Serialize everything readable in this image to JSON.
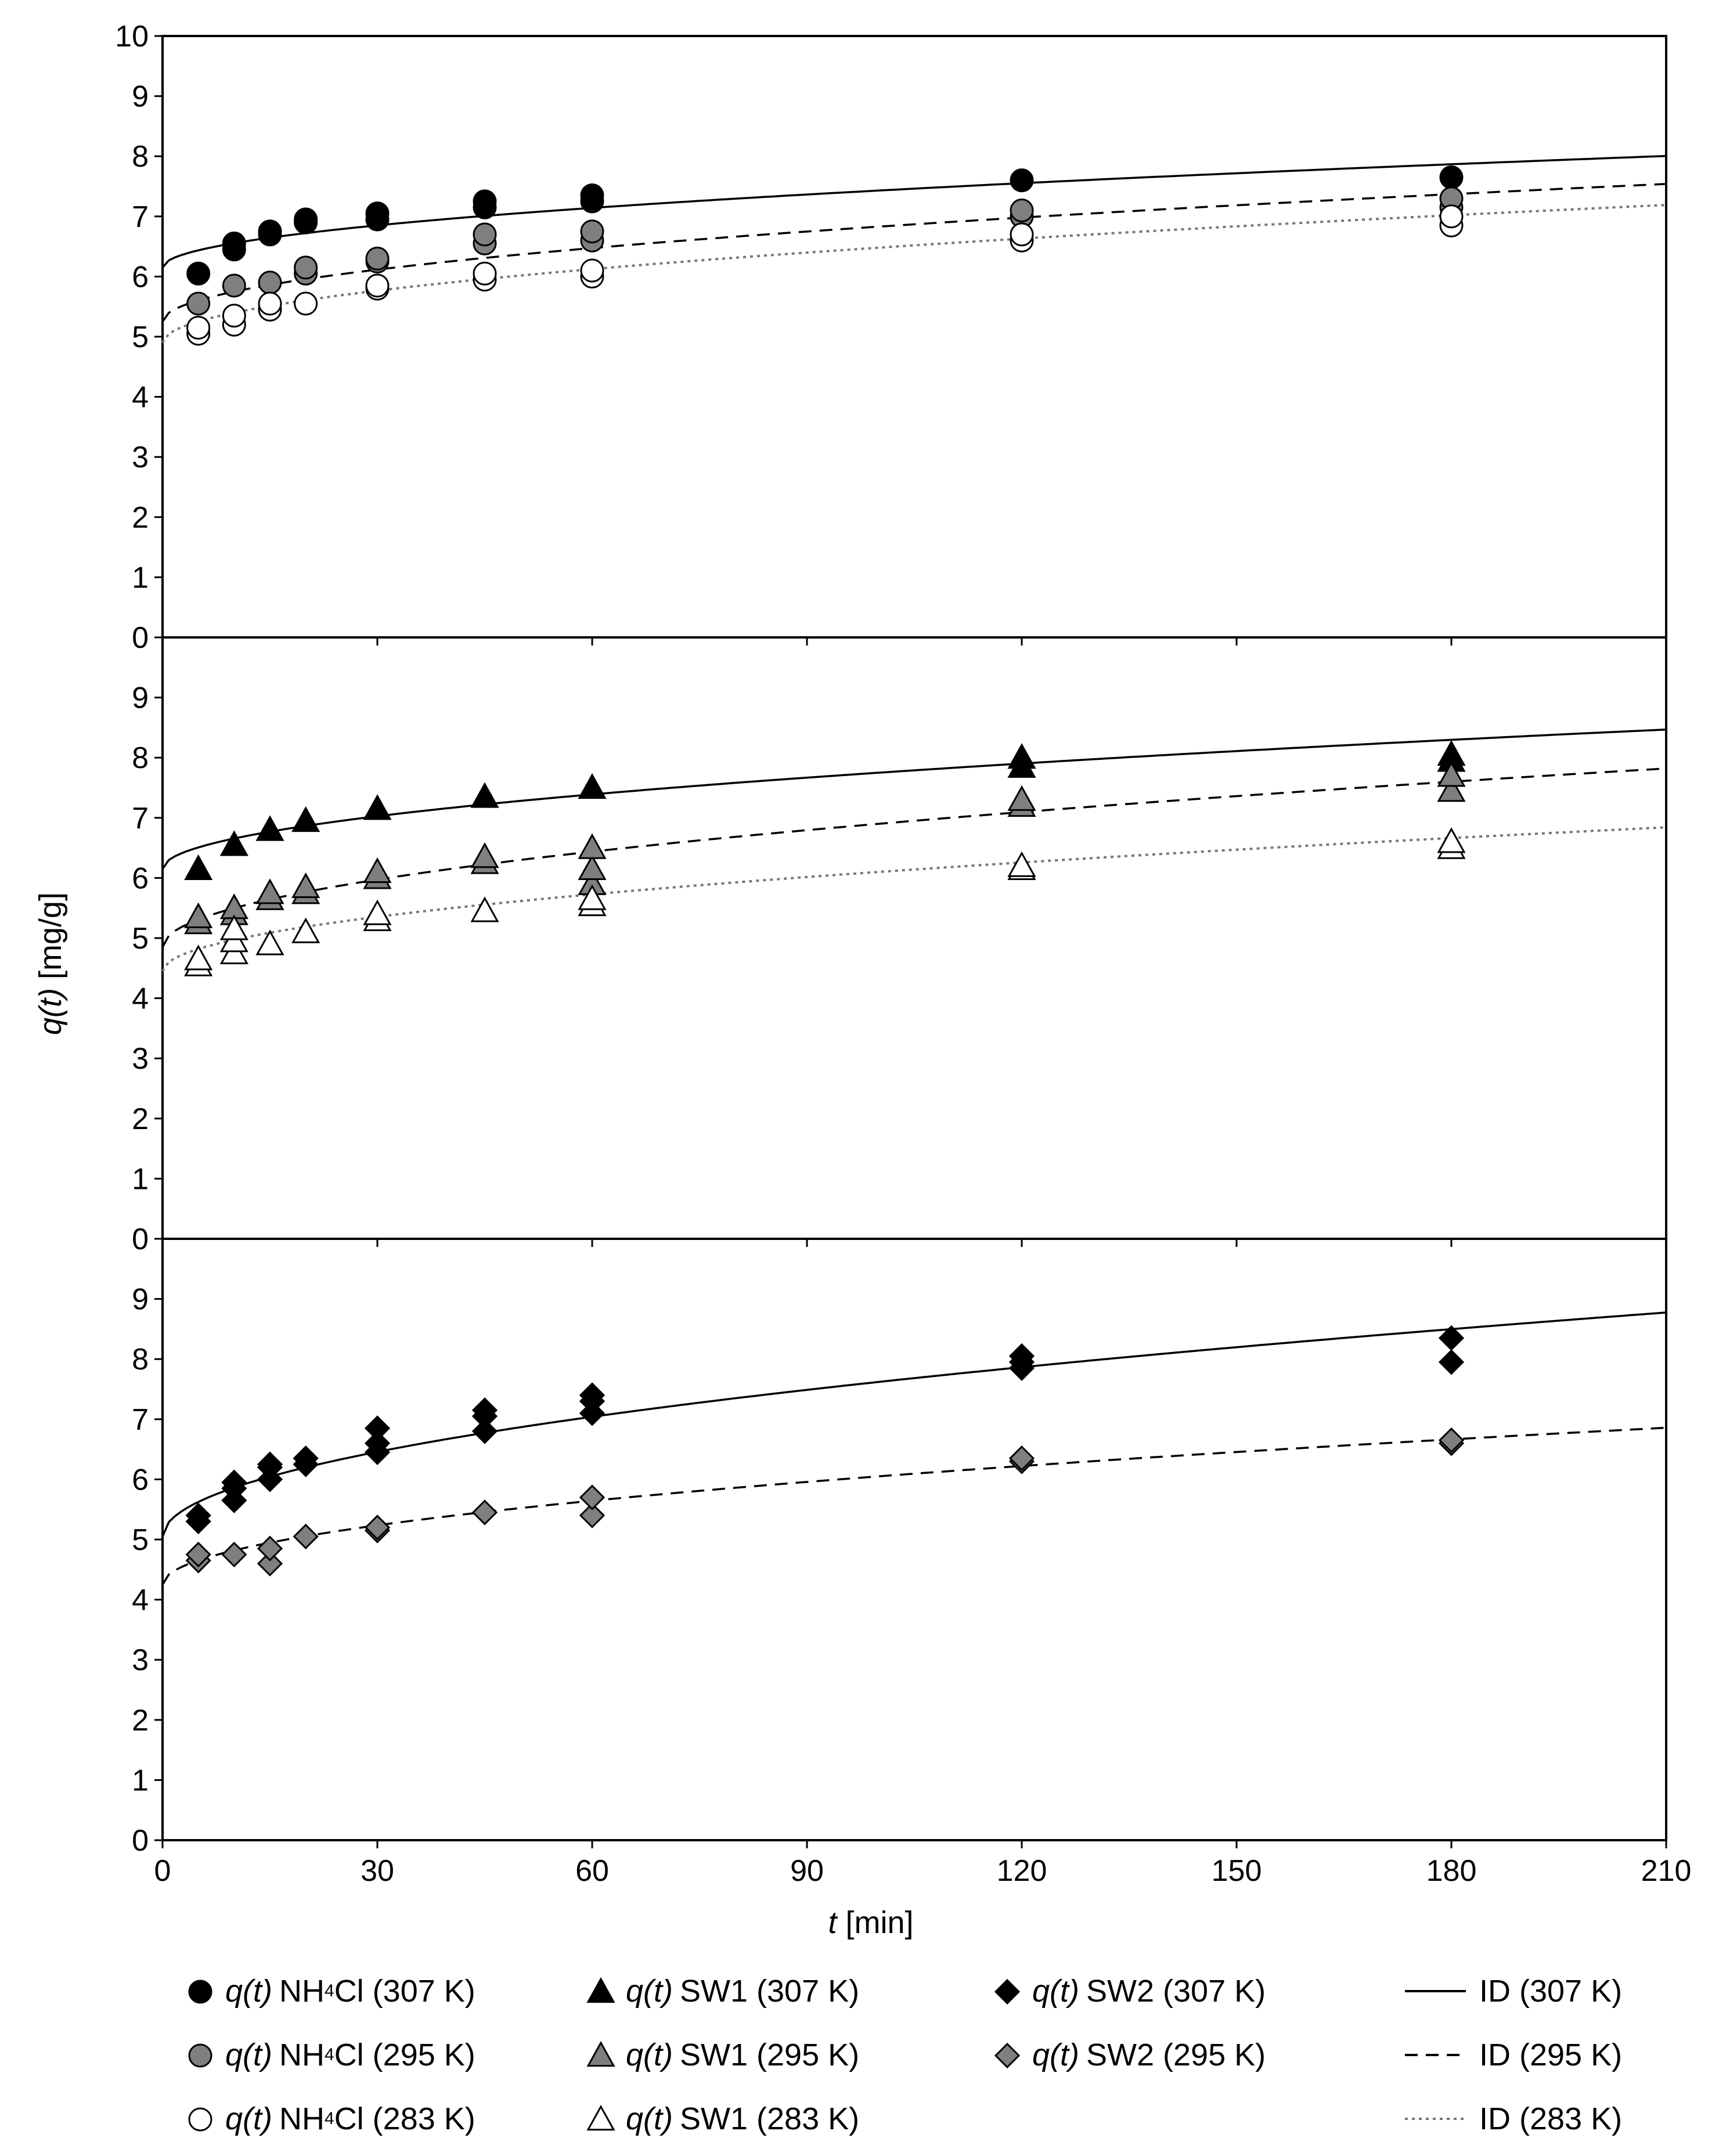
{
  "chart_data": {
    "type": "scatter",
    "x_axis": {
      "label_italic": "t",
      "label_unit": " [min]",
      "ticks": [
        0,
        30,
        60,
        90,
        120,
        150,
        180,
        210
      ],
      "xlim": [
        0,
        210
      ]
    },
    "y_axis": {
      "label_italic": "q(t)",
      "label_unit": " [mg/g]"
    },
    "panels": [
      {
        "name": "NH4Cl",
        "ylim": [
          0,
          10
        ],
        "yticks": [
          0,
          1,
          2,
          3,
          4,
          5,
          6,
          7,
          8,
          9,
          10
        ],
        "series": [
          {
            "name": "q(t) NH4Cl (307 K)",
            "marker": "circle",
            "fill": "#000000",
            "points": [
              [
                5,
                6.05
              ],
              [
                10,
                6.45
              ],
              [
                10,
                6.55
              ],
              [
                15,
                6.7
              ],
              [
                15,
                6.75
              ],
              [
                20,
                6.9
              ],
              [
                20,
                6.95
              ],
              [
                30,
                6.95
              ],
              [
                30,
                7.05
              ],
              [
                45,
                7.15
              ],
              [
                45,
                7.25
              ],
              [
                60,
                7.25
              ],
              [
                60,
                7.35
              ],
              [
                120,
                7.6
              ],
              [
                180,
                7.65
              ]
            ]
          },
          {
            "name": "q(t) NH4Cl (295 K)",
            "marker": "circle",
            "fill": "#7f7f7f",
            "points": [
              [
                5,
                5.55
              ],
              [
                10,
                5.85
              ],
              [
                15,
                5.9
              ],
              [
                20,
                6.05
              ],
              [
                20,
                6.15
              ],
              [
                30,
                6.25
              ],
              [
                30,
                6.3
              ],
              [
                45,
                6.55
              ],
              [
                45,
                6.7
              ],
              [
                60,
                6.6
              ],
              [
                60,
                6.75
              ],
              [
                120,
                7.0
              ],
              [
                120,
                7.1
              ],
              [
                180,
                7.15
              ],
              [
                180,
                7.3
              ]
            ]
          },
          {
            "name": "q(t) NH4Cl (283 K)",
            "marker": "circle",
            "fill": "#ffffff",
            "points": [
              [
                5,
                5.05
              ],
              [
                5,
                5.15
              ],
              [
                10,
                5.2
              ],
              [
                10,
                5.35
              ],
              [
                15,
                5.45
              ],
              [
                15,
                5.55
              ],
              [
                20,
                5.55
              ],
              [
                30,
                5.8
              ],
              [
                30,
                5.85
              ],
              [
                45,
                5.95
              ],
              [
                45,
                6.05
              ],
              [
                60,
                6.0
              ],
              [
                60,
                6.1
              ],
              [
                120,
                6.6
              ],
              [
                120,
                6.7
              ],
              [
                180,
                6.85
              ],
              [
                180,
                7.0
              ]
            ]
          }
        ],
        "fits": [
          {
            "name": "ID (307 K)",
            "style": "solid",
            "color": "#000000",
            "q0": 6.15,
            "k": 0.128
          },
          {
            "name": "ID (295 K)",
            "style": "dashed",
            "color": "#000000",
            "q0": 5.25,
            "k": 0.158
          },
          {
            "name": "ID (283 K)",
            "style": "dotted",
            "color": "#777777",
            "q0": 4.9,
            "k": 0.158
          }
        ]
      },
      {
        "name": "SW1",
        "ylim": [
          0,
          10
        ],
        "yticks": [
          0,
          1,
          2,
          3,
          4,
          5,
          6,
          7,
          8,
          9
        ],
        "series": [
          {
            "name": "q(t) SW1 (307 K)",
            "marker": "triangle",
            "fill": "#000000",
            "points": [
              [
                5,
                6.15
              ],
              [
                10,
                6.55
              ],
              [
                15,
                6.8
              ],
              [
                20,
                6.95
              ],
              [
                30,
                7.15
              ],
              [
                45,
                7.35
              ],
              [
                60,
                7.5
              ],
              [
                120,
                7.85
              ],
              [
                120,
                8.0
              ],
              [
                180,
                7.95
              ],
              [
                180,
                8.05
              ]
            ]
          },
          {
            "name": "q(t) SW1 (295 K)",
            "marker": "triangle",
            "fill": "#7f7f7f",
            "points": [
              [
                5,
                5.25
              ],
              [
                5,
                5.35
              ],
              [
                10,
                5.4
              ],
              [
                10,
                5.5
              ],
              [
                15,
                5.65
              ],
              [
                15,
                5.75
              ],
              [
                20,
                5.75
              ],
              [
                20,
                5.85
              ],
              [
                30,
                6.0
              ],
              [
                30,
                6.1
              ],
              [
                45,
                6.25
              ],
              [
                45,
                6.35
              ],
              [
                60,
                5.9
              ],
              [
                60,
                6.15
              ],
              [
                60,
                6.5
              ],
              [
                120,
                7.2
              ],
              [
                120,
                7.3
              ],
              [
                180,
                7.45
              ],
              [
                180,
                7.7
              ]
            ]
          },
          {
            "name": "q(t) SW1 (283 K)",
            "marker": "triangle",
            "fill": "#ffffff",
            "points": [
              [
                5,
                4.55
              ],
              [
                5,
                4.65
              ],
              [
                10,
                4.75
              ],
              [
                10,
                4.95
              ],
              [
                10,
                5.15
              ],
              [
                15,
                4.9
              ],
              [
                20,
                5.1
              ],
              [
                30,
                5.3
              ],
              [
                30,
                5.4
              ],
              [
                45,
                5.45
              ],
              [
                60,
                5.55
              ],
              [
                60,
                5.65
              ],
              [
                120,
                6.15
              ],
              [
                120,
                6.2
              ],
              [
                180,
                6.5
              ],
              [
                180,
                6.6
              ]
            ]
          }
        ],
        "fits": [
          {
            "name": "ID (307 K)",
            "style": "solid",
            "color": "#000000",
            "q0": 6.15,
            "k": 0.16
          },
          {
            "name": "ID (295 K)",
            "style": "dashed",
            "color": "#000000",
            "q0": 4.85,
            "k": 0.205
          },
          {
            "name": "ID (283 K)",
            "style": "dotted",
            "color": "#777777",
            "q0": 4.45,
            "k": 0.165
          }
        ]
      },
      {
        "name": "SW2",
        "ylim": [
          0,
          10
        ],
        "yticks": [
          0,
          1,
          2,
          3,
          4,
          5,
          6,
          7,
          8,
          9
        ],
        "series": [
          {
            "name": "q(t) SW2 (307 K)",
            "marker": "diamond",
            "fill": "#000000",
            "points": [
              [
                5,
                5.3
              ],
              [
                5,
                5.4
              ],
              [
                10,
                5.65
              ],
              [
                10,
                5.85
              ],
              [
                10,
                5.95
              ],
              [
                15,
                6.0
              ],
              [
                15,
                6.2
              ],
              [
                15,
                6.25
              ],
              [
                20,
                6.25
              ],
              [
                20,
                6.35
              ],
              [
                30,
                6.45
              ],
              [
                30,
                6.6
              ],
              [
                30,
                6.85
              ],
              [
                45,
                6.8
              ],
              [
                45,
                7.05
              ],
              [
                45,
                7.15
              ],
              [
                60,
                7.1
              ],
              [
                60,
                7.3
              ],
              [
                60,
                7.4
              ],
              [
                120,
                7.85
              ],
              [
                120,
                7.95
              ],
              [
                120,
                8.05
              ],
              [
                180,
                7.95
              ],
              [
                180,
                8.35
              ]
            ]
          },
          {
            "name": "q(t) SW2 (295 K)",
            "marker": "diamond",
            "fill": "#7f7f7f",
            "points": [
              [
                5,
                4.65
              ],
              [
                5,
                4.75
              ],
              [
                10,
                4.75
              ],
              [
                15,
                4.6
              ],
              [
                15,
                4.85
              ],
              [
                20,
                5.05
              ],
              [
                30,
                5.15
              ],
              [
                30,
                5.2
              ],
              [
                45,
                5.45
              ],
              [
                60,
                5.4
              ],
              [
                60,
                5.7
              ],
              [
                120,
                6.3
              ],
              [
                120,
                6.35
              ],
              [
                180,
                6.6
              ],
              [
                180,
                6.65
              ]
            ]
          }
        ],
        "fits": [
          {
            "name": "ID (307 K)",
            "style": "solid",
            "color": "#000000",
            "q0": 5.05,
            "k": 0.257
          },
          {
            "name": "ID (295 K)",
            "style": "dashed",
            "color": "#000000",
            "q0": 4.25,
            "k": 0.18
          }
        ]
      }
    ]
  },
  "legend": {
    "col1": [
      {
        "marker": "circle",
        "fill": "#000000",
        "q": "q(t)",
        "pre": "NH",
        "sub": "4",
        "post": "Cl (307 K)"
      },
      {
        "marker": "circle",
        "fill": "#7f7f7f",
        "q": "q(t)",
        "pre": "NH",
        "sub": "4",
        "post": "Cl (295 K)"
      },
      {
        "marker": "circle",
        "fill": "#ffffff",
        "q": "q(t)",
        "pre": "NH",
        "sub": "4",
        "post": "Cl (283 K)"
      }
    ],
    "col2": [
      {
        "marker": "triangle",
        "fill": "#000000",
        "q": "q(t)",
        "text": "SW1 (307 K)"
      },
      {
        "marker": "triangle",
        "fill": "#7f7f7f",
        "q": "q(t)",
        "text": "SW1 (295 K)"
      },
      {
        "marker": "triangle",
        "fill": "#ffffff",
        "q": "q(t)",
        "text": "SW1 (283 K)"
      }
    ],
    "col3": [
      {
        "marker": "diamond",
        "fill": "#000000",
        "q": "q(t)",
        "text": "SW2 (307 K)"
      },
      {
        "marker": "diamond",
        "fill": "#7f7f7f",
        "q": "q(t)",
        "text": "SW2 (295 K)"
      }
    ],
    "col4": [
      {
        "style": "solid",
        "color": "#000000",
        "text": "ID (307 K)"
      },
      {
        "style": "dashed",
        "color": "#000000",
        "text": "ID (295 K)"
      },
      {
        "style": "dotted",
        "color": "#777777",
        "text": "ID (283 K)"
      }
    ]
  }
}
